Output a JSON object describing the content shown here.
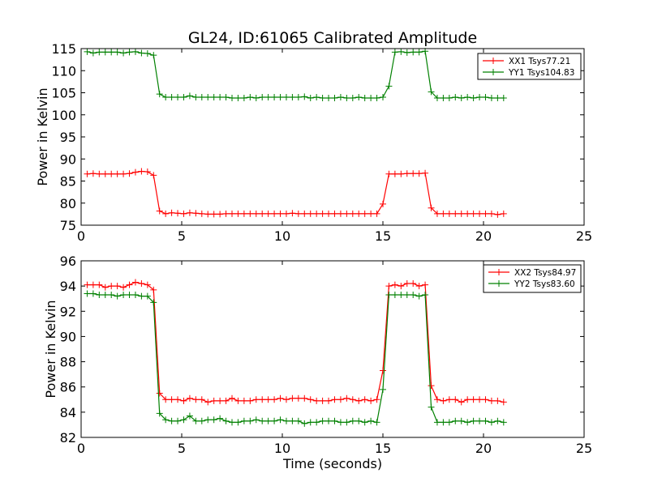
{
  "figure": {
    "title": "GL24, ID:61065 Calibrated Amplitude",
    "xlabel": "Time (seconds)"
  },
  "chart_data": [
    {
      "type": "line",
      "title": "GL24, ID:61065 Calibrated Amplitude",
      "xlabel": "",
      "ylabel": "Power in Kelvin",
      "xlim": [
        0,
        25
      ],
      "ylim": [
        75,
        115
      ],
      "xticks": [
        0,
        5,
        10,
        15,
        20,
        25
      ],
      "yticks": [
        75,
        80,
        85,
        90,
        95,
        100,
        105,
        110,
        115
      ],
      "grid": false,
      "legend_position": "top-right",
      "series": [
        {
          "name": "XX1 Tsys77.21",
          "color": "#ff0000",
          "marker": "+",
          "x": [
            0.3,
            0.6,
            0.9,
            1.2,
            1.5,
            1.8,
            2.1,
            2.4,
            2.7,
            3.0,
            3.3,
            3.6,
            3.9,
            4.2,
            4.5,
            4.8,
            5.1,
            5.4,
            5.7,
            6.0,
            6.3,
            6.6,
            6.9,
            7.2,
            7.5,
            7.8,
            8.1,
            8.4,
            8.7,
            9.0,
            9.3,
            9.6,
            9.9,
            10.2,
            10.5,
            10.8,
            11.1,
            11.4,
            11.7,
            12.0,
            12.3,
            12.6,
            12.9,
            13.2,
            13.5,
            13.8,
            14.1,
            14.4,
            14.7,
            15.0,
            15.3,
            15.6,
            15.9,
            16.2,
            16.5,
            16.8,
            17.1,
            17.4,
            17.7,
            18.0,
            18.3,
            18.6,
            18.9,
            19.2,
            19.5,
            19.8,
            20.1,
            20.4,
            20.7,
            21.0
          ],
          "y": [
            86.6,
            86.7,
            86.6,
            86.6,
            86.6,
            86.6,
            86.6,
            86.7,
            87.0,
            87.2,
            87.1,
            86.3,
            78.2,
            77.6,
            77.8,
            77.7,
            77.6,
            77.8,
            77.7,
            77.6,
            77.5,
            77.5,
            77.5,
            77.6,
            77.6,
            77.6,
            77.6,
            77.6,
            77.6,
            77.6,
            77.6,
            77.6,
            77.6,
            77.6,
            77.7,
            77.6,
            77.6,
            77.6,
            77.6,
            77.6,
            77.6,
            77.6,
            77.6,
            77.6,
            77.6,
            77.6,
            77.6,
            77.6,
            77.6,
            79.8,
            86.6,
            86.6,
            86.6,
            86.7,
            86.7,
            86.7,
            86.8,
            78.9,
            77.6,
            77.6,
            77.6,
            77.6,
            77.6,
            77.6,
            77.6,
            77.6,
            77.6,
            77.6,
            77.4,
            77.6
          ]
        },
        {
          "name": "YY1 Tsys104.83",
          "color": "#008000",
          "marker": "+",
          "x": [
            0.3,
            0.6,
            0.9,
            1.2,
            1.5,
            1.8,
            2.1,
            2.4,
            2.7,
            3.0,
            3.3,
            3.6,
            3.9,
            4.2,
            4.5,
            4.8,
            5.1,
            5.4,
            5.7,
            6.0,
            6.3,
            6.6,
            6.9,
            7.2,
            7.5,
            7.8,
            8.1,
            8.4,
            8.7,
            9.0,
            9.3,
            9.6,
            9.9,
            10.2,
            10.5,
            10.8,
            11.1,
            11.4,
            11.7,
            12.0,
            12.3,
            12.6,
            12.9,
            13.2,
            13.5,
            13.8,
            14.1,
            14.4,
            14.7,
            15.0,
            15.3,
            15.6,
            15.9,
            16.2,
            16.5,
            16.8,
            17.1,
            17.4,
            17.7,
            18.0,
            18.3,
            18.6,
            18.9,
            19.2,
            19.5,
            19.8,
            20.1,
            20.4,
            20.7,
            21.0
          ],
          "y": [
            114.3,
            114.0,
            114.2,
            114.2,
            114.2,
            114.2,
            114.0,
            114.2,
            114.3,
            114.0,
            113.9,
            113.5,
            104.7,
            104.0,
            104.0,
            104.0,
            104.0,
            104.3,
            104.0,
            104.0,
            104.0,
            104.0,
            104.0,
            104.0,
            103.8,
            103.8,
            103.8,
            104.0,
            103.8,
            104.0,
            104.0,
            104.0,
            104.0,
            104.0,
            104.0,
            104.0,
            104.1,
            103.8,
            104.0,
            103.8,
            103.8,
            103.8,
            104.0,
            103.8,
            103.8,
            104.0,
            103.8,
            103.8,
            103.8,
            104.0,
            106.5,
            114.2,
            114.3,
            114.1,
            114.2,
            114.2,
            114.4,
            105.2,
            103.8,
            103.8,
            103.8,
            104.0,
            103.8,
            104.0,
            103.8,
            104.0,
            104.0,
            103.8,
            103.8,
            103.8
          ]
        }
      ]
    },
    {
      "type": "line",
      "title": "",
      "xlabel": "Time (seconds)",
      "ylabel": "Power in Kelvin",
      "xlim": [
        0,
        25
      ],
      "ylim": [
        82,
        96
      ],
      "xticks": [
        0,
        5,
        10,
        15,
        20,
        25
      ],
      "yticks": [
        82,
        84,
        86,
        88,
        90,
        92,
        94,
        96
      ],
      "grid": false,
      "legend_position": "top-right",
      "series": [
        {
          "name": "XX2 Tsys84.97",
          "color": "#ff0000",
          "marker": "+",
          "x": [
            0.3,
            0.6,
            0.9,
            1.2,
            1.5,
            1.8,
            2.1,
            2.4,
            2.7,
            3.0,
            3.3,
            3.6,
            3.9,
            4.2,
            4.5,
            4.8,
            5.1,
            5.4,
            5.7,
            6.0,
            6.3,
            6.6,
            6.9,
            7.2,
            7.5,
            7.8,
            8.1,
            8.4,
            8.7,
            9.0,
            9.3,
            9.6,
            9.9,
            10.2,
            10.5,
            10.8,
            11.1,
            11.4,
            11.7,
            12.0,
            12.3,
            12.6,
            12.9,
            13.2,
            13.5,
            13.8,
            14.1,
            14.4,
            14.7,
            15.0,
            15.3,
            15.6,
            15.9,
            16.2,
            16.5,
            16.8,
            17.1,
            17.4,
            17.7,
            18.0,
            18.3,
            18.6,
            18.9,
            19.2,
            19.5,
            19.8,
            20.1,
            20.4,
            20.7,
            21.0
          ],
          "y": [
            94.1,
            94.1,
            94.1,
            93.9,
            94.0,
            94.0,
            93.9,
            94.1,
            94.3,
            94.2,
            94.1,
            93.7,
            85.5,
            85.0,
            85.0,
            85.0,
            84.9,
            85.1,
            85.0,
            85.0,
            84.8,
            84.9,
            84.9,
            84.9,
            85.1,
            84.9,
            84.9,
            84.9,
            85.0,
            85.0,
            85.0,
            85.0,
            85.1,
            85.0,
            85.1,
            85.1,
            85.1,
            85.0,
            84.9,
            84.9,
            84.9,
            85.0,
            85.0,
            85.1,
            85.0,
            84.9,
            85.0,
            84.9,
            85.0,
            87.3,
            94.0,
            94.1,
            94.0,
            94.2,
            94.2,
            94.0,
            94.1,
            86.1,
            85.0,
            84.9,
            85.0,
            85.0,
            84.8,
            85.0,
            85.0,
            85.0,
            85.0,
            84.9,
            84.9,
            84.8
          ]
        },
        {
          "name": "YY2 Tsys83.60",
          "color": "#008000",
          "marker": "+",
          "x": [
            0.3,
            0.6,
            0.9,
            1.2,
            1.5,
            1.8,
            2.1,
            2.4,
            2.7,
            3.0,
            3.3,
            3.6,
            3.9,
            4.2,
            4.5,
            4.8,
            5.1,
            5.4,
            5.7,
            6.0,
            6.3,
            6.6,
            6.9,
            7.2,
            7.5,
            7.8,
            8.1,
            8.4,
            8.7,
            9.0,
            9.3,
            9.6,
            9.9,
            10.2,
            10.5,
            10.8,
            11.1,
            11.4,
            11.7,
            12.0,
            12.3,
            12.6,
            12.9,
            13.2,
            13.5,
            13.8,
            14.1,
            14.4,
            14.7,
            15.0,
            15.3,
            15.6,
            15.9,
            16.2,
            16.5,
            16.8,
            17.1,
            17.4,
            17.7,
            18.0,
            18.3,
            18.6,
            18.9,
            19.2,
            19.5,
            19.8,
            20.1,
            20.4,
            20.7,
            21.0
          ],
          "y": [
            93.4,
            93.4,
            93.3,
            93.3,
            93.3,
            93.2,
            93.3,
            93.3,
            93.3,
            93.2,
            93.2,
            92.7,
            83.9,
            83.4,
            83.3,
            83.3,
            83.4,
            83.7,
            83.3,
            83.3,
            83.4,
            83.4,
            83.5,
            83.3,
            83.2,
            83.2,
            83.3,
            83.3,
            83.4,
            83.3,
            83.3,
            83.3,
            83.4,
            83.3,
            83.3,
            83.3,
            83.1,
            83.2,
            83.2,
            83.3,
            83.3,
            83.3,
            83.2,
            83.2,
            83.3,
            83.3,
            83.2,
            83.3,
            83.2,
            85.8,
            93.3,
            93.3,
            93.3,
            93.3,
            93.3,
            93.2,
            93.3,
            84.4,
            83.2,
            83.2,
            83.2,
            83.3,
            83.3,
            83.2,
            83.3,
            83.3,
            83.3,
            83.2,
            83.3,
            83.2
          ]
        }
      ]
    }
  ]
}
